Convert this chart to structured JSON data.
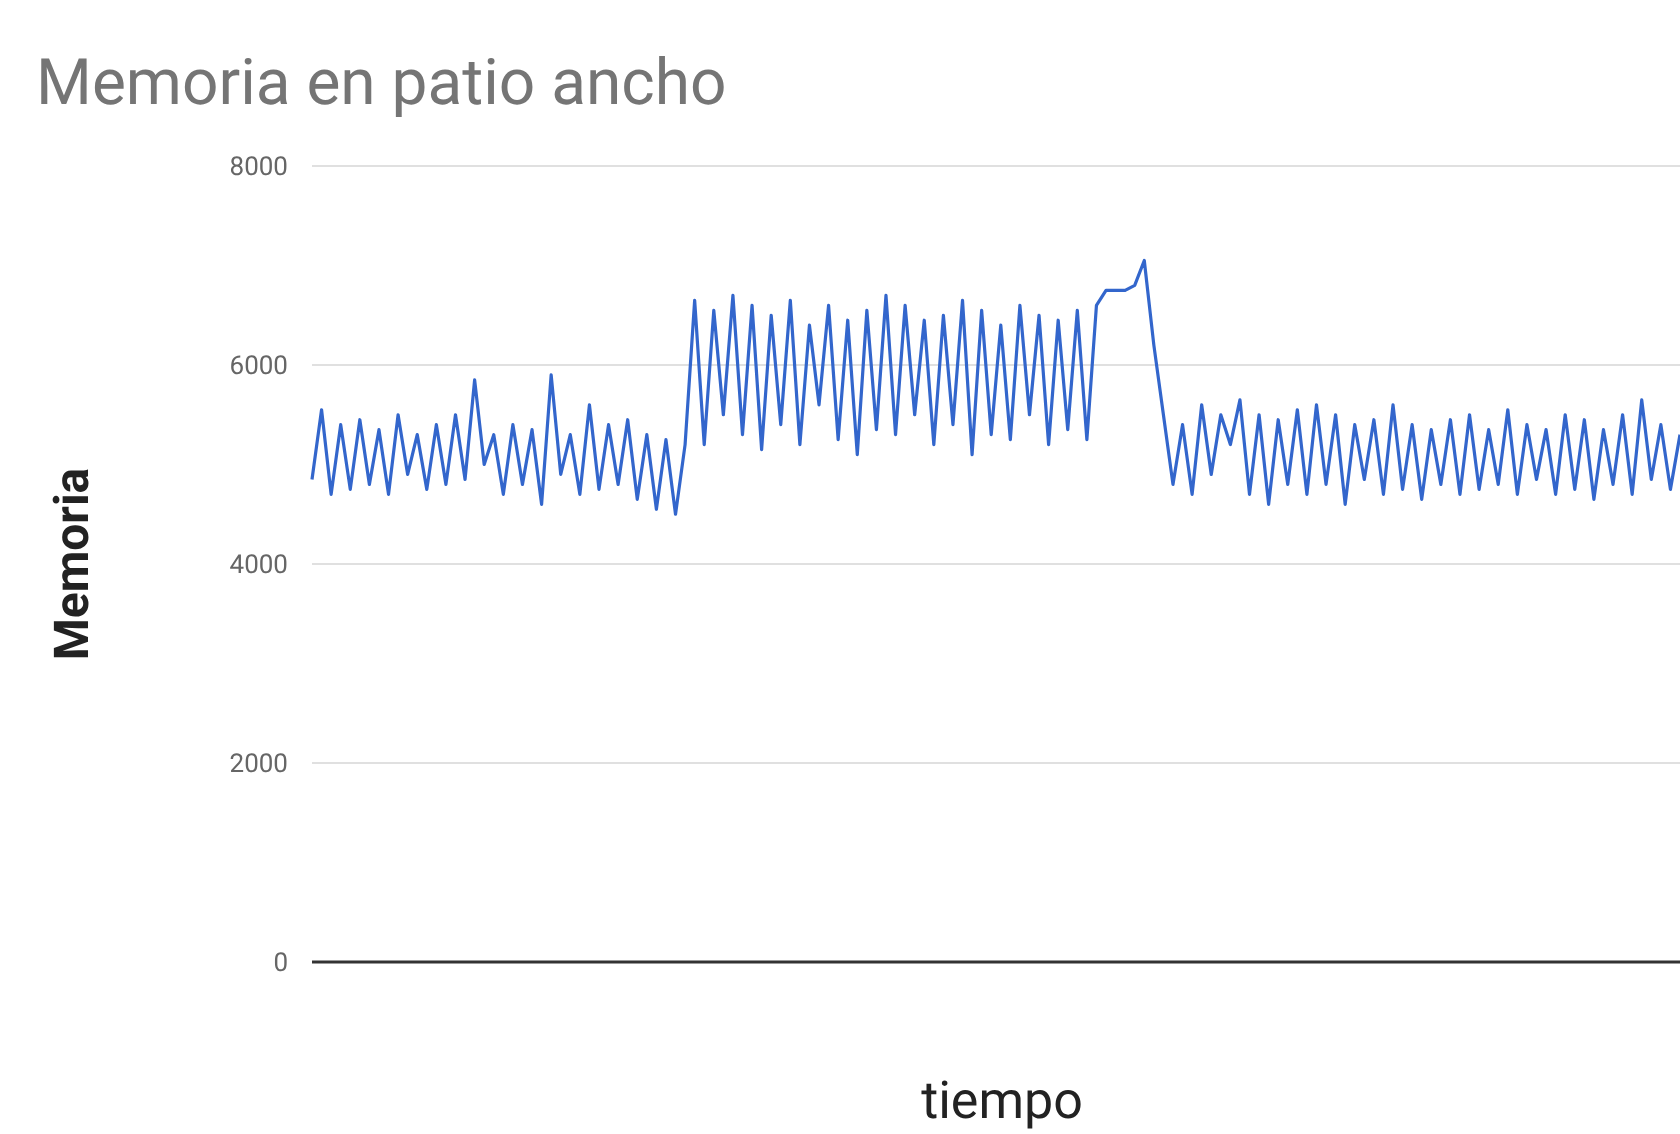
{
  "chart_data": {
    "type": "line",
    "title": "Memoria en patio ancho",
    "xlabel": "tiempo",
    "ylabel": "Memoria",
    "ylim": [
      0,
      8000
    ],
    "yticks": [
      0,
      2000,
      4000,
      6000,
      8000
    ],
    "grid": "y",
    "tick_labels": "y",
    "categories": [
      null,
      null,
      null,
      null,
      null,
      null,
      null,
      null,
      null,
      null,
      null,
      null,
      null,
      null,
      null,
      null,
      null,
      null,
      null,
      null,
      null,
      null,
      null,
      null,
      null,
      null,
      null,
      null,
      null,
      null,
      null,
      null,
      null,
      null,
      null,
      null,
      null,
      null,
      null,
      null,
      null,
      null,
      null,
      null,
      null,
      null,
      null,
      null,
      null,
      null,
      null,
      null,
      null,
      null,
      null,
      null,
      null,
      null,
      null,
      null,
      null,
      null,
      null,
      null,
      null,
      null,
      null,
      null,
      null,
      null,
      null,
      null,
      null,
      null,
      null,
      null,
      null,
      null,
      null,
      null,
      null,
      null,
      null,
      null,
      null,
      null,
      null,
      null,
      null,
      null,
      null,
      null,
      null,
      null,
      null,
      null,
      null,
      null,
      null,
      null,
      null,
      null,
      null,
      null,
      null,
      null,
      null,
      null,
      null,
      null,
      null,
      null,
      null,
      null,
      null,
      null,
      null,
      null,
      null,
      null,
      null,
      null,
      null,
      null,
      null,
      null,
      null,
      null,
      null,
      null,
      null,
      null,
      null,
      null,
      null,
      null,
      null,
      null,
      null,
      null,
      null,
      null,
      null,
      null
    ],
    "series": [
      {
        "color": "#3366cc",
        "values": [
          4850,
          5550,
          4700,
          5400,
          4750,
          5450,
          4800,
          5350,
          4700,
          5500,
          4900,
          5300,
          4750,
          5400,
          4800,
          5500,
          4850,
          5850,
          5000,
          5300,
          4700,
          5400,
          4800,
          5350,
          4600,
          5900,
          4900,
          5300,
          4700,
          5600,
          4750,
          5400,
          4800,
          5450,
          4650,
          5300,
          4550,
          5250,
          4500,
          5200,
          6650,
          5200,
          6550,
          5500,
          6700,
          5300,
          6600,
          5150,
          6500,
          5400,
          6650,
          5200,
          6400,
          5600,
          6600,
          5250,
          6450,
          5100,
          6550,
          5350,
          6700,
          5300,
          6600,
          5500,
          6450,
          5200,
          6500,
          5400,
          6650,
          5100,
          6550,
          5300,
          6400,
          5250,
          6600,
          5500,
          6500,
          5200,
          6450,
          5350,
          6550,
          5250,
          6600,
          6750,
          6750,
          6750,
          6800,
          7050,
          6200,
          5500,
          4800,
          5400,
          4700,
          5600,
          4900,
          5500,
          5200,
          5650,
          4700,
          5500,
          4600,
          5450,
          4800,
          5550,
          4700,
          5600,
          4800,
          5500,
          4600,
          5400,
          4850,
          5450,
          4700,
          5600,
          4750,
          5400,
          4650,
          5350,
          4800,
          5450,
          4700,
          5500,
          4750,
          5350,
          4800,
          5550,
          4700,
          5400,
          4850,
          5350,
          4700,
          5500,
          4750,
          5450,
          4650,
          5350,
          4800,
          5500,
          4700,
          5650,
          4850,
          5400,
          4750,
          5300
        ]
      }
    ]
  }
}
